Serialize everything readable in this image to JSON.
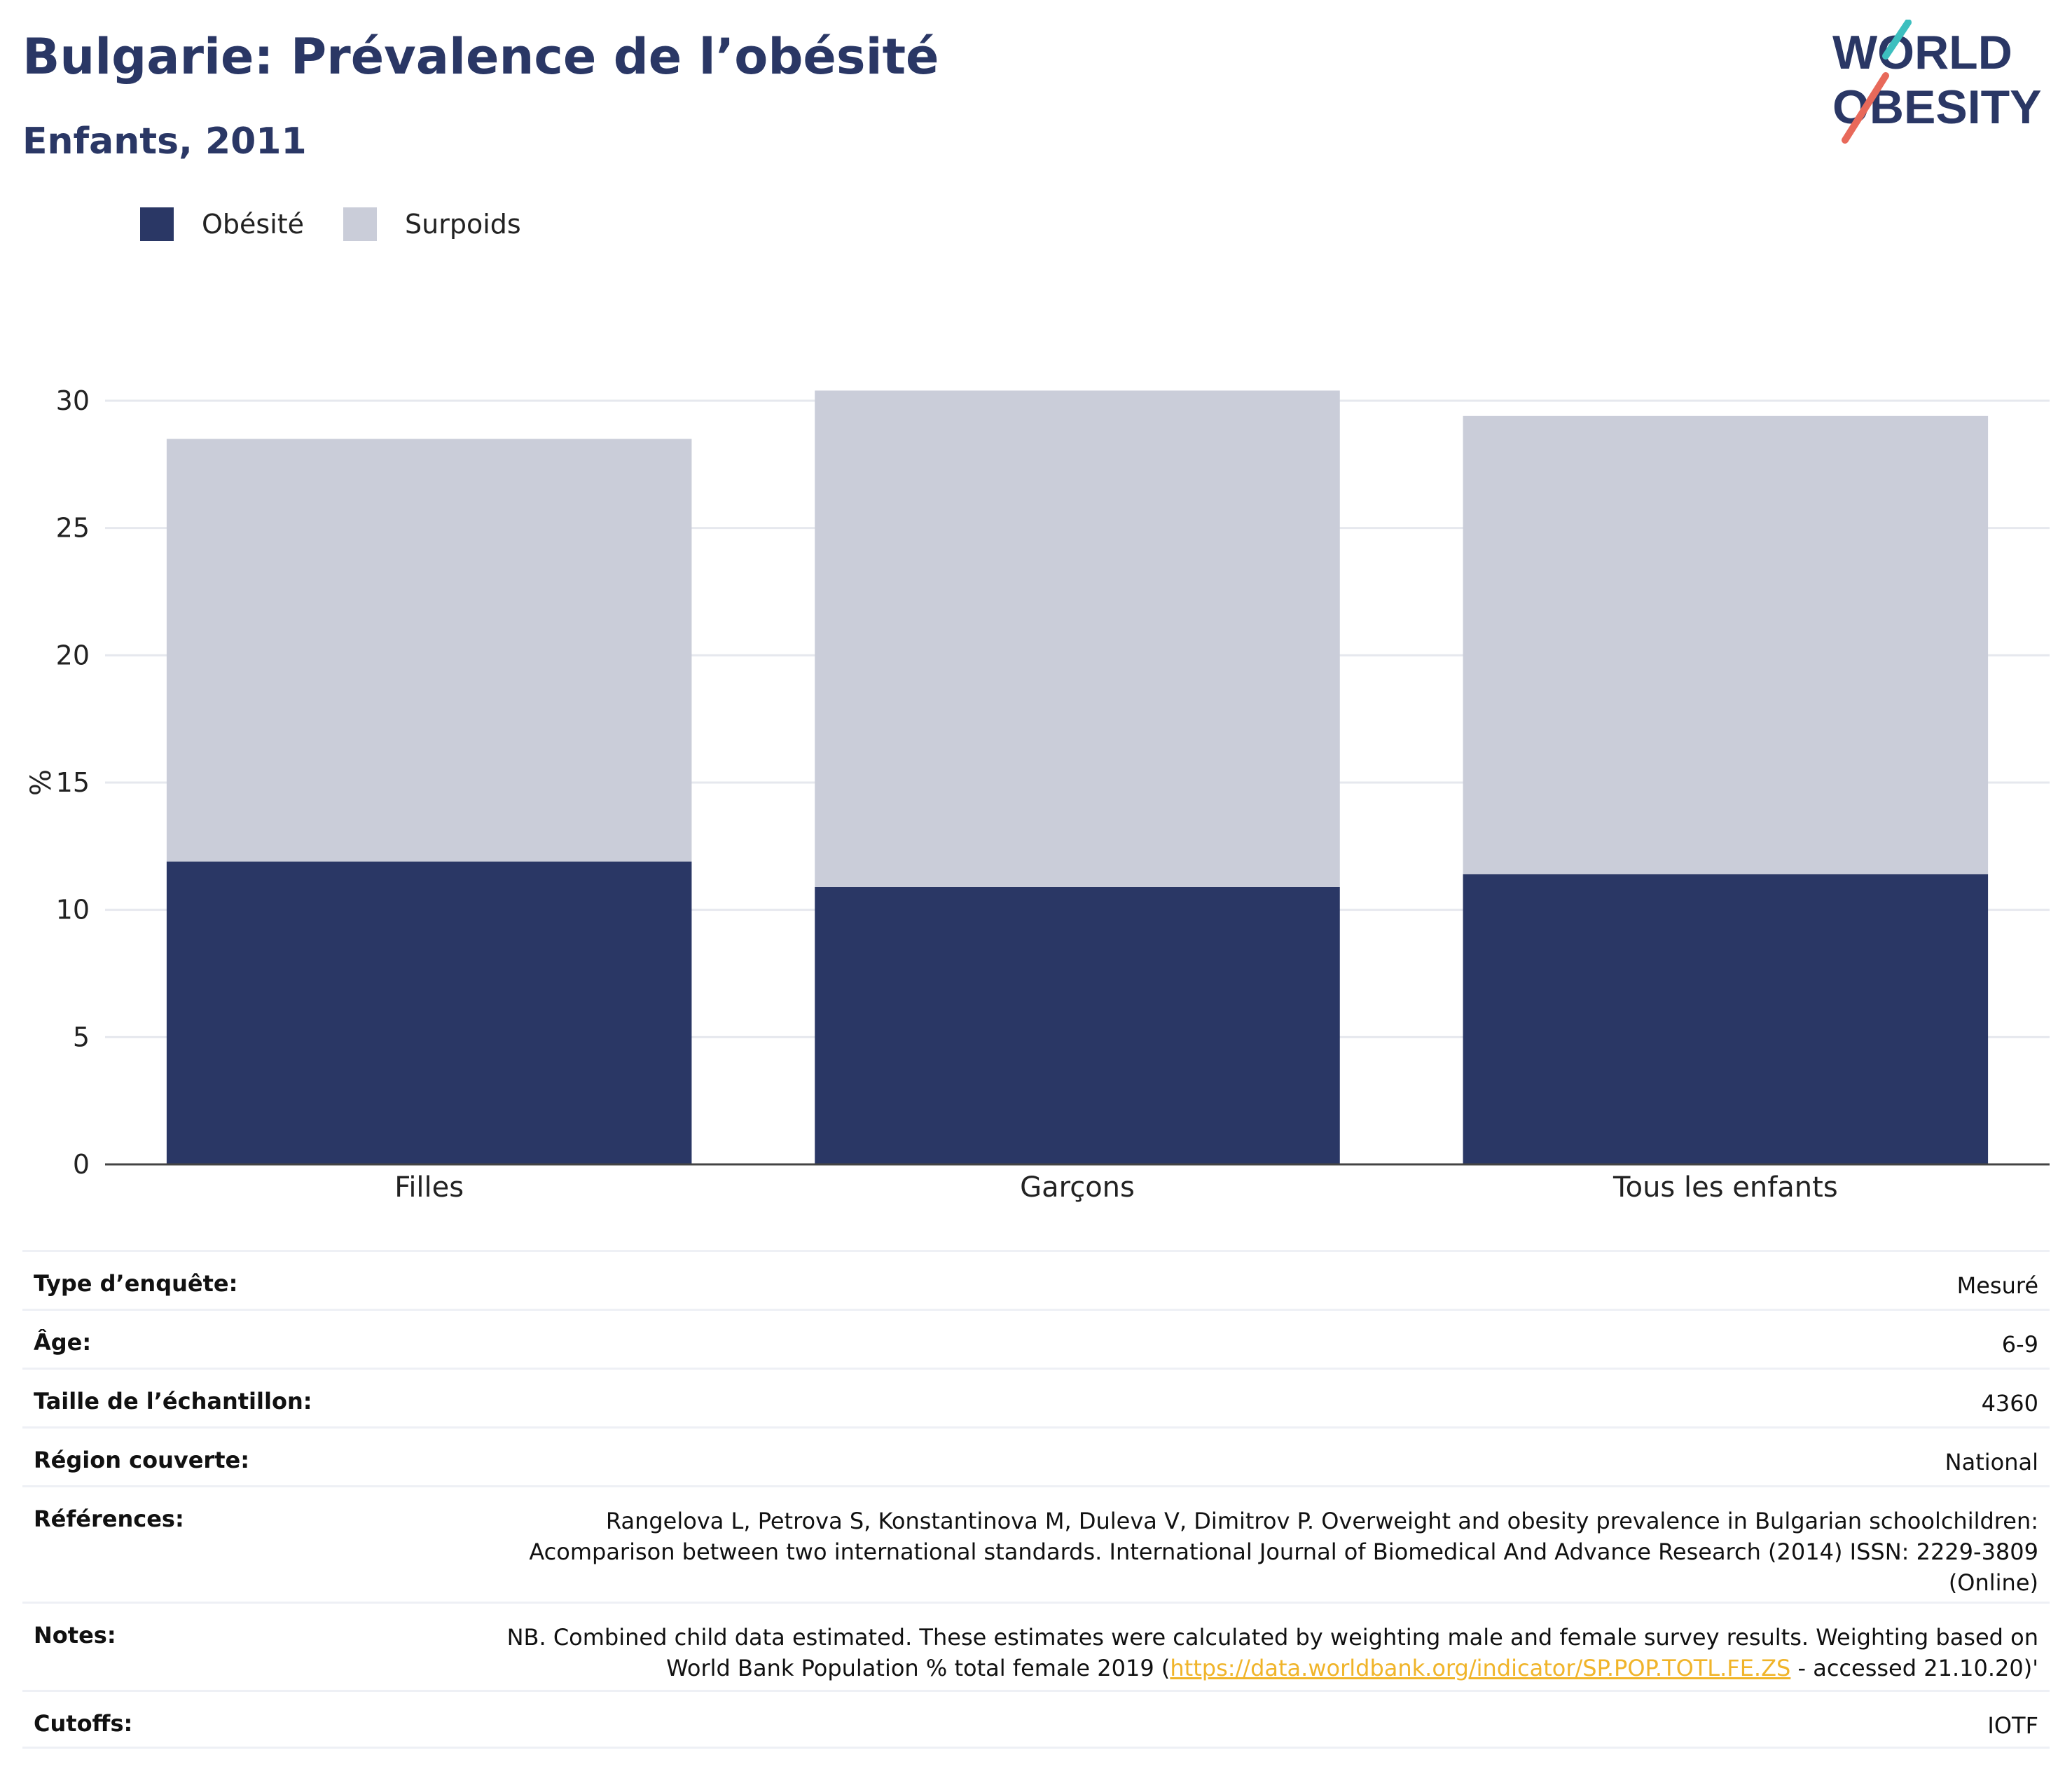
{
  "header": {
    "title": "Bulgarie: Prévalence de l’obésité",
    "subtitle": "Enfants, 2011",
    "logo_line1": "WORLD",
    "logo_line2": "OBESITY"
  },
  "legend": [
    {
      "label": "Obésité",
      "color": "#2a3765"
    },
    {
      "label": "Surpoids",
      "color": "#cacdd9"
    }
  ],
  "chart_data": {
    "type": "bar",
    "stacked": true,
    "categories": [
      "Filles",
      "Garçons",
      "Tous les enfants"
    ],
    "series": [
      {
        "name": "Obésité",
        "values": [
          11.9,
          10.9,
          11.4
        ],
        "color": "#2a3765"
      },
      {
        "name": "Surpoids",
        "values": [
          16.6,
          19.5,
          18.0
        ],
        "color": "#cacdd9"
      }
    ],
    "ylabel": "%",
    "ylim": [
      0,
      30
    ],
    "yticks": [
      0,
      5,
      10,
      15,
      20,
      25,
      30
    ],
    "grid": true,
    "legend_position": "top-left"
  },
  "info": {
    "survey_type": {
      "label": "Type d’enquête:",
      "value": "Mesuré"
    },
    "age": {
      "label": "Âge:",
      "value": "6-9"
    },
    "sample_size": {
      "label": "Taille de l’échantillon:",
      "value": "4360"
    },
    "region": {
      "label": "Région couverte:",
      "value": "National"
    },
    "references": {
      "label": "Références:",
      "line1": "Rangelova L, Petrova S, Konstantinova M, Duleva V, Dimitrov P. Overweight and obesity prevalence in Bulgarian schoolchildren:",
      "line2": "Acomparison between two international standards. International Journal of Biomedical And Advance Research (2014) ISSN: 2229-3809",
      "line3": "(Online)"
    },
    "notes": {
      "label": "Notes:",
      "line1": "NB. Combined child data estimated. These estimates were calculated by weighting male and female survey results. Weighting based on",
      "line2_pre": "World Bank Population % total female 2019 (",
      "line2_link": "https://data.worldbank.org/indicator/SP.POP.TOTL.FE.ZS",
      "line2_post": " - accessed 21.10.20)'"
    },
    "cutoffs": {
      "label": "Cutoffs:",
      "value": "IOTF"
    }
  }
}
